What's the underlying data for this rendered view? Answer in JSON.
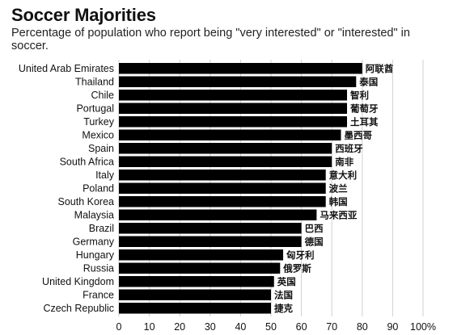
{
  "chart_data": {
    "type": "bar",
    "orientation": "horizontal",
    "title": "Soccer Majorities",
    "subtitle": "Percentage of population who report being \"very interested\" or \"interested\" in soccer.",
    "categories": [
      "United Arab Emirates",
      "Thailand",
      "Chile",
      "Portugal",
      "Turkey",
      "Mexico",
      "Spain",
      "South Africa",
      "Italy",
      "Poland",
      "South Korea",
      "Malaysia",
      "Brazil",
      "Germany",
      "Hungary",
      "Russia",
      "United Kingdom",
      "France",
      "Czech Republic"
    ],
    "category_labels_cn": [
      "阿联酋",
      "泰国",
      "智利",
      "葡萄牙",
      "土耳其",
      "墨西哥",
      "西班牙",
      "南非",
      "意大利",
      "波兰",
      "韩国",
      "马来西亚",
      "巴西",
      "德国",
      "匈牙利",
      "俄罗斯",
      "英国",
      "法国",
      "捷克"
    ],
    "values": [
      80,
      78,
      75,
      75,
      75,
      73,
      70,
      70,
      68,
      68,
      68,
      65,
      60,
      60,
      54,
      53,
      51,
      50,
      50
    ],
    "x_ticks": [
      "0",
      "10",
      "20",
      "30",
      "40",
      "50",
      "60",
      "70",
      "80",
      "90",
      "100%"
    ],
    "xlim": [
      0,
      100
    ],
    "grid": true,
    "bar_color": "#000000",
    "xlabel": "",
    "ylabel": ""
  }
}
